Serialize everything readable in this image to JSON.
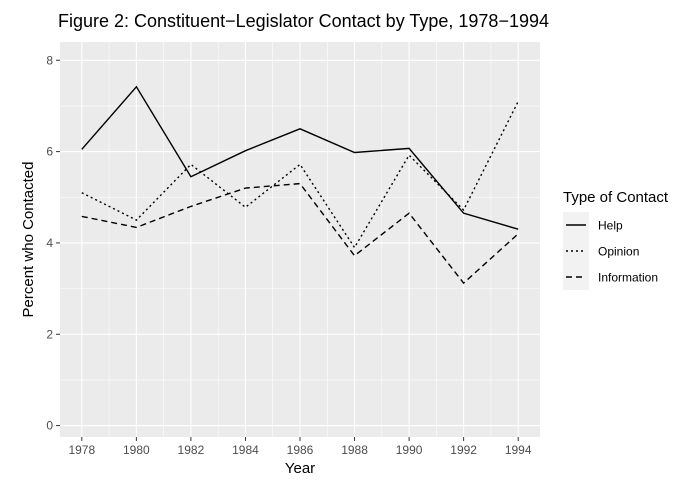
{
  "chart_data": {
    "type": "line",
    "title": "Figure 2: Constituent−Legislator Contact by Type, 1978−1994",
    "xlabel": "Year",
    "ylabel": "Percent who Contacted",
    "x": [
      1978,
      1980,
      1982,
      1984,
      1986,
      1988,
      1990,
      1992,
      1994
    ],
    "x_ticks": [
      "1978",
      "1980",
      "1982",
      "1984",
      "1986",
      "1988",
      "1990",
      "1992",
      "1994"
    ],
    "y_ticks": [
      "0",
      "2",
      "4",
      "6",
      "8"
    ],
    "xlim": [
      1977.2,
      1994.8
    ],
    "ylim": [
      -0.25,
      8.4
    ],
    "grid": true,
    "legend_title": "Type of Contact",
    "legend_position": "right",
    "series": [
      {
        "name": "Help",
        "dash": "solid",
        "values": [
          6.05,
          7.42,
          5.45,
          6.02,
          6.5,
          5.98,
          6.07,
          4.65,
          4.3
        ]
      },
      {
        "name": "Opinion",
        "dash": "dotted",
        "values": [
          5.1,
          4.5,
          5.72,
          4.78,
          5.72,
          3.9,
          5.92,
          4.72,
          7.1
        ]
      },
      {
        "name": "Information",
        "dash": "dashed",
        "values": [
          4.58,
          4.34,
          4.8,
          5.2,
          5.3,
          3.72,
          4.65,
          3.12,
          4.2
        ]
      }
    ]
  }
}
